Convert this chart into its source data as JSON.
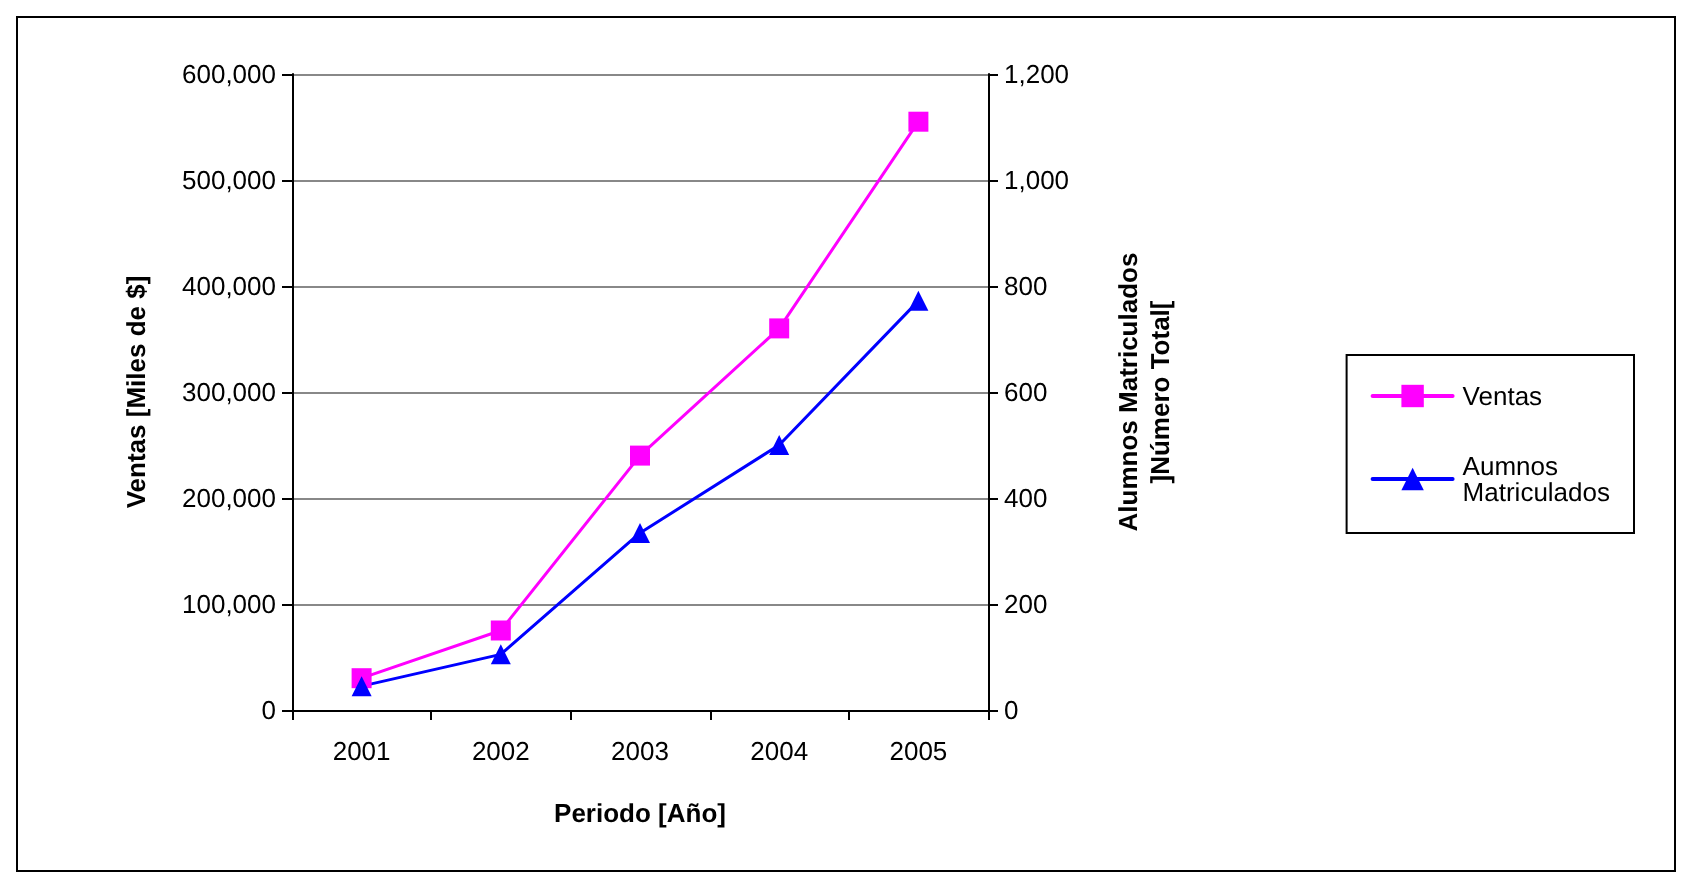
{
  "chart_data": {
    "type": "line",
    "xlabel": "Periodo [Año]",
    "ylabel": "Ventas [Miles de $]",
    "y2label": "Alumnos Matriculados\n]Número Total[",
    "categories": [
      "2001",
      "2002",
      "2003",
      "2004",
      "2005"
    ],
    "series": [
      {
        "name": "Ventas",
        "color": "#ff00ff",
        "marker": "square",
        "values": [
          30000,
          75000,
          240000,
          360000,
          555000
        ]
      },
      {
        "name": "Aumnos Matriculados",
        "color": "#0000ff",
        "marker": "triangle",
        "axis": "y2",
        "values": [
          45,
          105,
          334,
          500,
          772
        ]
      }
    ],
    "ylim": [
      0,
      600000
    ],
    "yticks": [
      {
        "value": 0,
        "label": "0"
      },
      {
        "value": 100000,
        "label": "100,000"
      },
      {
        "value": 200000,
        "label": "200,000"
      },
      {
        "value": 300000,
        "label": "300,000"
      },
      {
        "value": 400000,
        "label": "400,000"
      },
      {
        "value": 500000,
        "label": "500,000"
      },
      {
        "value": 600000,
        "label": "600,000"
      }
    ],
    "y2lim": [
      0,
      1200
    ],
    "y2ticks": [
      {
        "value": 0,
        "label": "0"
      },
      {
        "value": 200,
        "label": "200"
      },
      {
        "value": 400,
        "label": "400"
      },
      {
        "value": 600,
        "label": "600"
      },
      {
        "value": 800,
        "label": "800"
      },
      {
        "value": 1000,
        "label": "1,000"
      },
      {
        "value": 1200,
        "label": "1,200"
      }
    ],
    "grid": "y",
    "legend": "right",
    "line_style": "solid"
  }
}
